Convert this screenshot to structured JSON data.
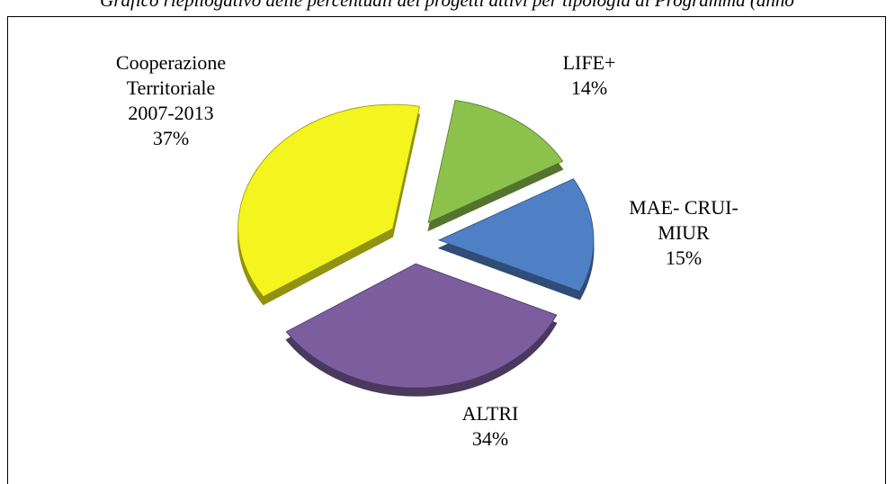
{
  "chart_data": {
    "type": "pie",
    "title": "Grafico riepilogativo delle percentuali dei progetti attivi per tipologia di Programma (anno",
    "categories": [
      "LIFE+",
      "MAE- CRUI-\nMIUR",
      "ALTRI",
      "Cooperazione\nTerritoriale\n2007-2013"
    ],
    "values": [
      14,
      15,
      34,
      37
    ],
    "value_labels": [
      "14%",
      "15%",
      "34%",
      "37%"
    ],
    "colors": [
      "#8cc24c",
      "#4f80c6",
      "#7c5d9e",
      "#f4f41e"
    ]
  }
}
